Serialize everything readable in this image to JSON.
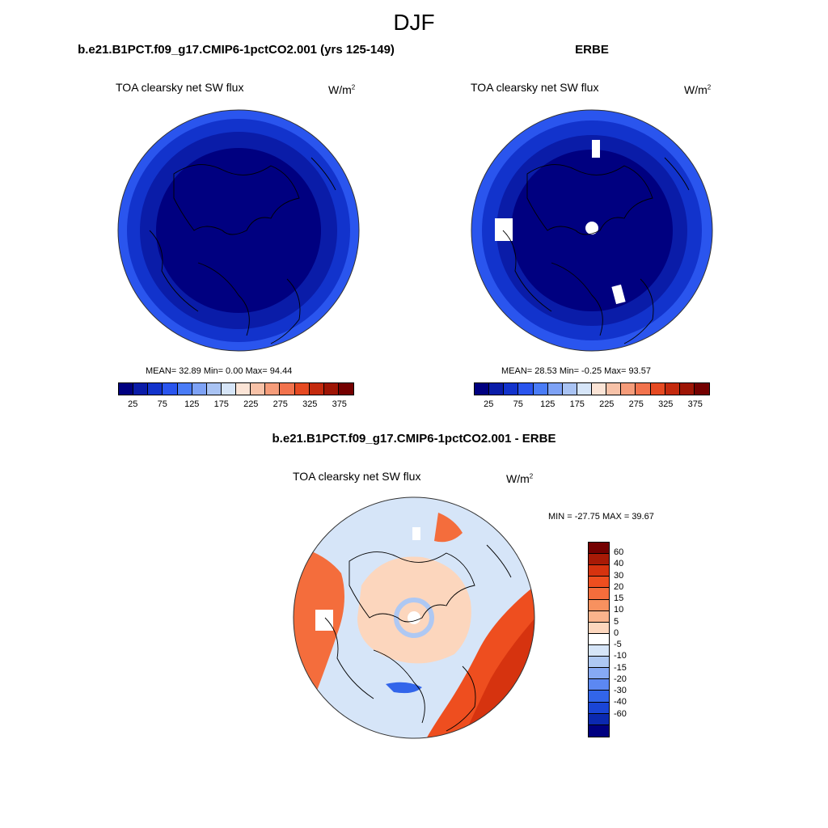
{
  "main_title": "DJF",
  "left_panel": {
    "title": "b.e21.B1PCT.f09_g17.CMIP6-1pctCO2.001 (yrs 125-149)",
    "variable": "TOA clearsky net SW flux",
    "units_base": "W/m",
    "units_exp": "2",
    "stats": "MEAN=  32.89  Min=   0.00  Max=  94.44"
  },
  "right_panel": {
    "title": "ERBE",
    "variable": "TOA clearsky net SW flux",
    "units_base": "W/m",
    "units_exp": "2",
    "stats": "MEAN=  28.53  Min=  -0.25  Max=  93.57"
  },
  "diff_panel": {
    "title": "b.e21.B1PCT.f09_g17.CMIP6-1pctCO2.001 - ERBE",
    "variable": "TOA clearsky net SW flux",
    "units_base": "W/m",
    "units_exp": "2",
    "stats": "MIN = -27.75 MAX =  39.67"
  },
  "abs_colorbar": {
    "colors": [
      "#000080",
      "#0a1ca8",
      "#1233cc",
      "#2a55ee",
      "#4a7cf7",
      "#7ea2f5",
      "#a9c3f3",
      "#d6e5f8",
      "#fbe4d6",
      "#f7c2a8",
      "#f59c7a",
      "#f2734d",
      "#e64a22",
      "#c42a0e",
      "#9e1505",
      "#740000"
    ],
    "ticks": [
      "25",
      "75",
      "125",
      "175",
      "225",
      "275",
      "325",
      "375"
    ]
  },
  "diff_colorbar": {
    "colors": [
      "#740000",
      "#a81a06",
      "#d6330f",
      "#ee4e1f",
      "#f46d3c",
      "#f7915f",
      "#fab38c",
      "#fcd6bd",
      "#ffffff",
      "#d6e5f8",
      "#aec8f3",
      "#86a9f4",
      "#5c88f2",
      "#3265ea",
      "#1a45d6",
      "#0b29b0",
      "#000080"
    ],
    "ticks": [
      "60",
      "40",
      "30",
      "20",
      "15",
      "10",
      "5",
      "0",
      "-5",
      "-10",
      "-15",
      "-20",
      "-30",
      "-40",
      "-60"
    ]
  }
}
